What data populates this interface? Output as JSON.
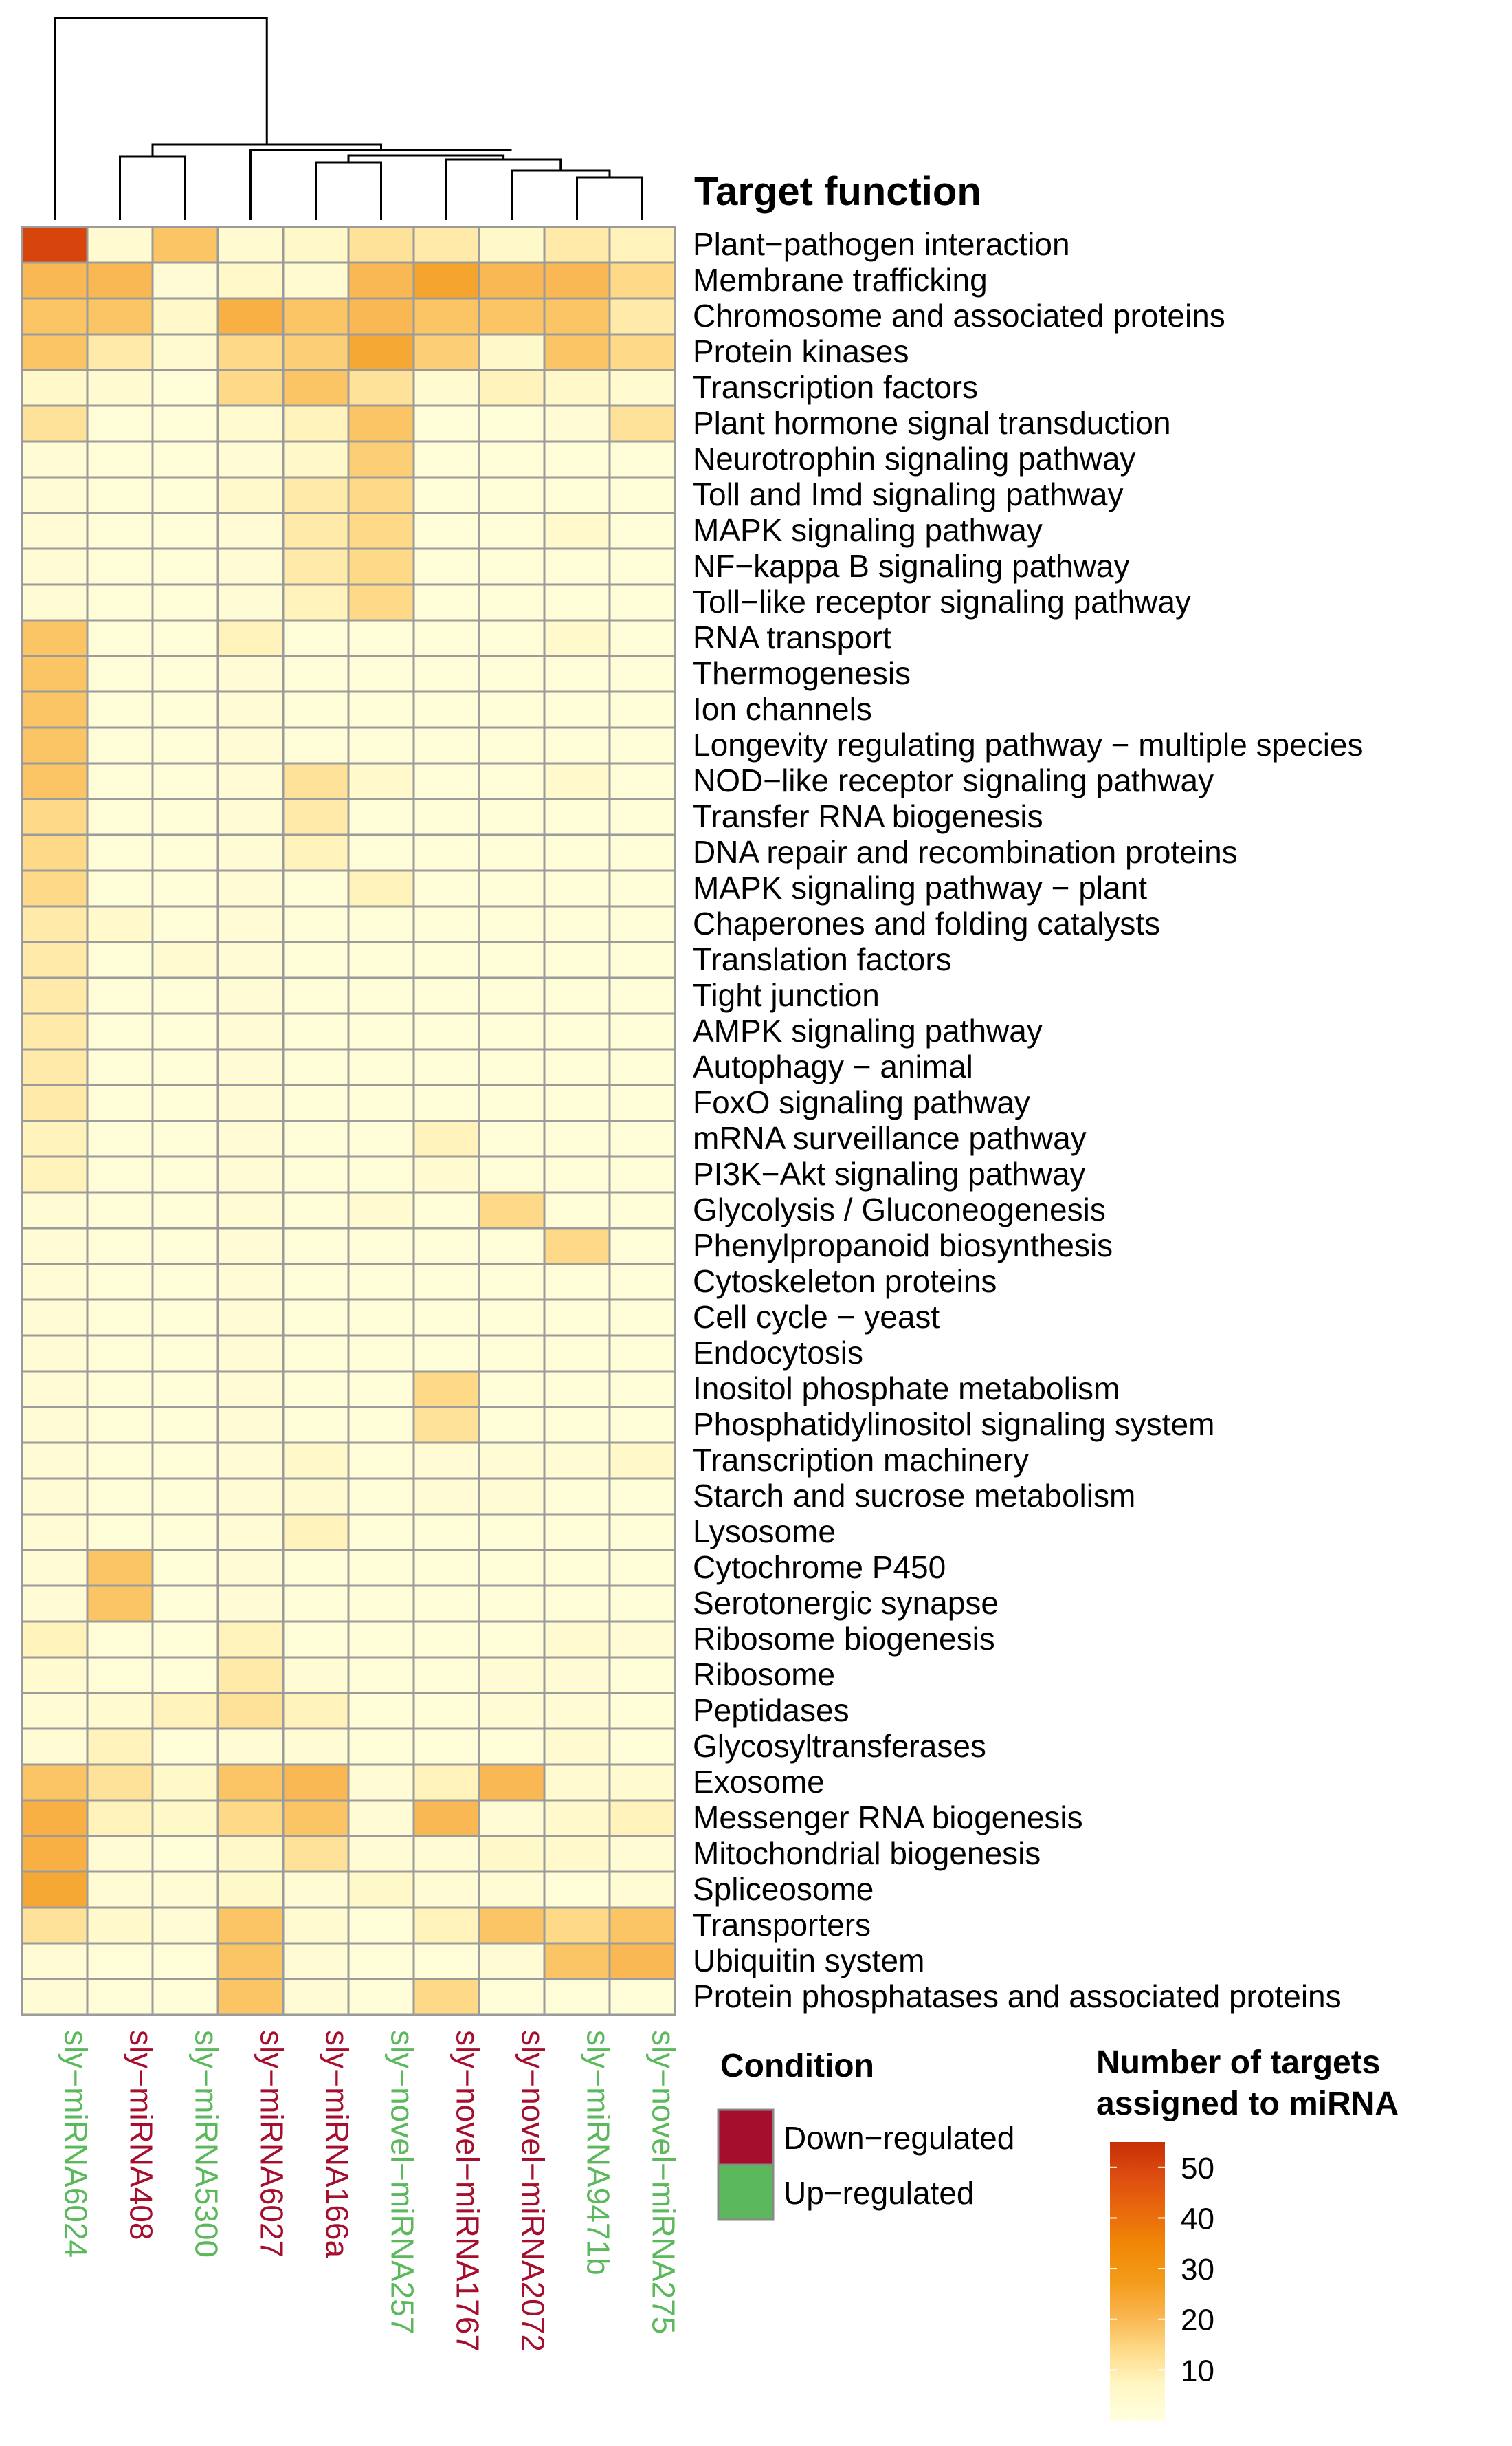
{
  "chart_data": {
    "type": "heatmap",
    "title": "Target function",
    "columns": [
      {
        "label": "sly−miRNA6024",
        "condition": "Up−regulated"
      },
      {
        "label": "sly−miRNA408",
        "condition": "Down−regulated"
      },
      {
        "label": "sly−miRNA5300",
        "condition": "Up−regulated"
      },
      {
        "label": "sly−miRNA6027",
        "condition": "Down−regulated"
      },
      {
        "label": "sly−miRNA166a",
        "condition": "Down−regulated"
      },
      {
        "label": "sly−novel−miRNA257",
        "condition": "Up−regulated"
      },
      {
        "label": "sly−novel−miRNA1767",
        "condition": "Down−regulated"
      },
      {
        "label": "sly−novel−miRNA2072",
        "condition": "Down−regulated"
      },
      {
        "label": "sly−miRNA9471b",
        "condition": "Up−regulated"
      },
      {
        "label": "sly−novel−miRNA275",
        "condition": "Up−regulated"
      }
    ],
    "rows": [
      "Plant−pathogen interaction",
      "Membrane trafficking",
      "Chromosome and associated proteins",
      "Protein kinases",
      "Transcription factors",
      "Plant hormone signal transduction",
      "Neurotrophin signaling pathway",
      "Toll and Imd signaling pathway",
      "MAPK signaling pathway",
      "NF−kappa B signaling pathway",
      "Toll−like receptor signaling pathway",
      "RNA transport",
      "Thermogenesis",
      "Ion channels",
      "Longevity regulating pathway − multiple species",
      "NOD−like receptor signaling pathway",
      "Transfer RNA biogenesis",
      "DNA repair and recombination proteins",
      "MAPK signaling pathway − plant",
      "Chaperones and folding catalysts",
      "Translation factors",
      "Tight junction",
      "AMPK signaling pathway",
      "Autophagy − animal",
      "FoxO signaling pathway",
      "mRNA surveillance pathway",
      "PI3K−Akt signaling pathway",
      "Glycolysis / Gluconeogenesis",
      "Phenylpropanoid biosynthesis",
      "Cytoskeleton proteins",
      "Cell cycle − yeast",
      "Endocytosis",
      "Inositol phosphate metabolism",
      "Phosphatidylinositol signaling system",
      "Transcription machinery",
      "Starch and sucrose metabolism",
      "Lysosome",
      "Cytochrome P450",
      "Serotonergic synapse",
      "Ribosome biogenesis",
      "Ribosome",
      "Peptidases",
      "Glycosyltransferases",
      "Exosome",
      "Messenger RNA biogenesis",
      "Mitochondrial biogenesis",
      "Spliceosome",
      "Transporters",
      "Ubiquitin system",
      "Protein phosphatases and associated proteins"
    ],
    "values": [
      [
        50,
        4,
        18,
        4,
        6,
        12,
        10,
        6,
        10,
        8
      ],
      [
        20,
        20,
        3,
        6,
        4,
        20,
        25,
        20,
        20,
        14
      ],
      [
        18,
        18,
        6,
        22,
        18,
        20,
        18,
        18,
        18,
        10
      ],
      [
        18,
        10,
        4,
        14,
        16,
        24,
        16,
        6,
        18,
        14
      ],
      [
        6,
        4,
        2,
        14,
        18,
        12,
        4,
        8,
        6,
        4
      ],
      [
        12,
        2,
        2,
        4,
        8,
        18,
        2,
        2,
        3,
        12
      ],
      [
        3,
        2,
        2,
        3,
        6,
        16,
        2,
        2,
        2,
        2
      ],
      [
        3,
        2,
        2,
        5,
        10,
        14,
        2,
        2,
        2,
        2
      ],
      [
        3,
        2,
        2,
        3,
        10,
        14,
        2,
        2,
        5,
        2
      ],
      [
        3,
        2,
        2,
        3,
        10,
        14,
        2,
        2,
        2,
        2
      ],
      [
        3,
        2,
        2,
        3,
        8,
        14,
        2,
        2,
        2,
        2
      ],
      [
        18,
        2,
        2,
        8,
        2,
        2,
        2,
        2,
        5,
        2
      ],
      [
        18,
        2,
        2,
        3,
        2,
        2,
        2,
        2,
        2,
        2
      ],
      [
        18,
        2,
        2,
        3,
        2,
        2,
        2,
        2,
        2,
        2
      ],
      [
        18,
        2,
        2,
        3,
        2,
        2,
        2,
        2,
        2,
        2
      ],
      [
        18,
        2,
        2,
        3,
        12,
        5,
        2,
        2,
        5,
        2
      ],
      [
        14,
        2,
        2,
        3,
        10,
        2,
        2,
        2,
        2,
        2
      ],
      [
        14,
        2,
        2,
        3,
        8,
        2,
        2,
        2,
        2,
        2
      ],
      [
        14,
        2,
        2,
        3,
        2,
        8,
        2,
        2,
        2,
        2
      ],
      [
        10,
        5,
        2,
        3,
        2,
        2,
        2,
        2,
        2,
        2
      ],
      [
        10,
        2,
        4,
        3,
        2,
        2,
        2,
        2,
        2,
        2
      ],
      [
        10,
        2,
        2,
        3,
        2,
        2,
        2,
        2,
        2,
        2
      ],
      [
        10,
        2,
        2,
        3,
        2,
        2,
        2,
        2,
        2,
        2
      ],
      [
        10,
        2,
        2,
        3,
        2,
        2,
        2,
        2,
        2,
        2
      ],
      [
        10,
        2,
        2,
        3,
        2,
        2,
        2,
        2,
        2,
        2
      ],
      [
        8,
        2,
        2,
        3,
        2,
        2,
        8,
        2,
        2,
        2
      ],
      [
        8,
        2,
        2,
        3,
        2,
        2,
        4,
        2,
        2,
        2
      ],
      [
        3,
        2,
        2,
        3,
        2,
        4,
        2,
        14,
        2,
        2
      ],
      [
        3,
        2,
        2,
        3,
        2,
        2,
        2,
        2,
        14,
        2
      ],
      [
        3,
        2,
        2,
        3,
        2,
        2,
        2,
        2,
        2,
        2
      ],
      [
        3,
        2,
        2,
        3,
        2,
        2,
        2,
        2,
        2,
        2
      ],
      [
        3,
        2,
        2,
        3,
        2,
        2,
        2,
        2,
        2,
        2
      ],
      [
        3,
        2,
        2,
        3,
        2,
        2,
        14,
        2,
        2,
        2
      ],
      [
        3,
        2,
        2,
        3,
        2,
        2,
        12,
        2,
        2,
        2
      ],
      [
        3,
        2,
        2,
        3,
        6,
        2,
        3,
        3,
        3,
        6
      ],
      [
        3,
        2,
        2,
        3,
        4,
        2,
        3,
        3,
        2,
        2
      ],
      [
        3,
        2,
        2,
        3,
        8,
        2,
        2,
        2,
        2,
        2
      ],
      [
        3,
        18,
        2,
        3,
        2,
        2,
        2,
        2,
        2,
        2
      ],
      [
        3,
        18,
        2,
        3,
        2,
        2,
        2,
        2,
        2,
        2
      ],
      [
        8,
        2,
        2,
        8,
        2,
        2,
        2,
        2,
        4,
        3
      ],
      [
        4,
        2,
        2,
        10,
        3,
        2,
        2,
        3,
        3,
        2
      ],
      [
        3,
        4,
        8,
        12,
        8,
        2,
        2,
        3,
        3,
        2
      ],
      [
        3,
        8,
        2,
        3,
        3,
        2,
        2,
        2,
        4,
        2
      ],
      [
        18,
        12,
        6,
        18,
        20,
        3,
        8,
        20,
        4,
        4
      ],
      [
        22,
        8,
        6,
        14,
        18,
        3,
        20,
        3,
        5,
        8
      ],
      [
        22,
        3,
        2,
        6,
        12,
        3,
        3,
        6,
        5,
        3
      ],
      [
        24,
        3,
        3,
        6,
        3,
        6,
        3,
        3,
        2,
        3
      ],
      [
        12,
        5,
        3,
        18,
        4,
        2,
        8,
        18,
        14,
        18
      ],
      [
        3,
        2,
        2,
        18,
        3,
        2,
        2,
        3,
        18,
        20
      ],
      [
        3,
        2,
        2,
        18,
        3,
        2,
        14,
        2,
        2,
        2
      ]
    ],
    "condition_legend": {
      "title": "Condition",
      "items": [
        {
          "label": "Down−regulated",
          "color": "#a50f2d"
        },
        {
          "label": "Up−regulated",
          "color": "#5cb85c"
        }
      ]
    },
    "color_scale": {
      "title_lines": [
        "Number of targets",
        "assigned to miRNA"
      ],
      "min": 0,
      "max": 55,
      "ticks": [
        10,
        20,
        30,
        40,
        50
      ],
      "stops": [
        "#fffee0",
        "#fff7c4",
        "#fedb8a",
        "#f9b54e",
        "#f39b1a",
        "#f18806",
        "#e96a0c",
        "#dd4d10",
        "#c72f06"
      ]
    },
    "column_dendrogram": "shown",
    "xlabel": "",
    "ylabel": ""
  }
}
